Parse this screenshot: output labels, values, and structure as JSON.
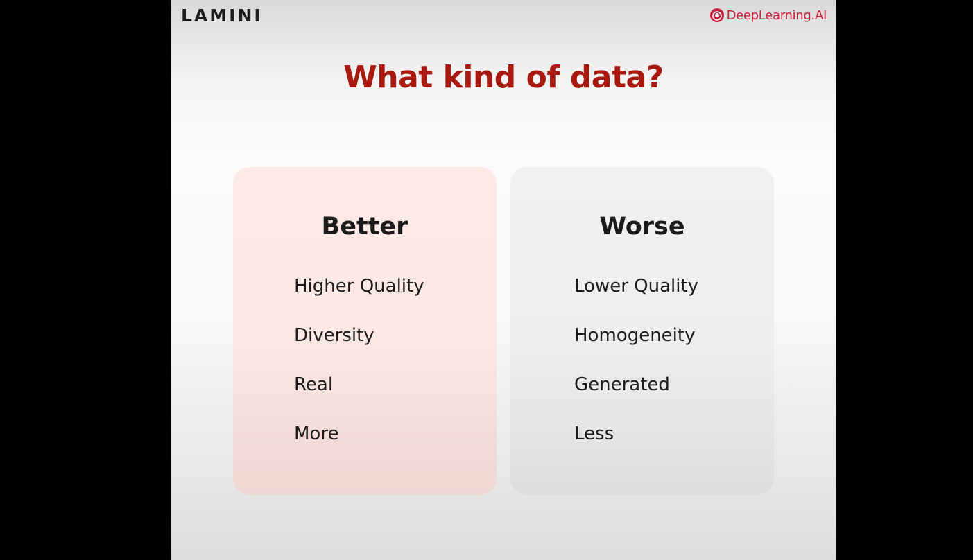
{
  "header": {
    "left_logo": "LAMINI",
    "right_logo": "DeepLearning.AI",
    "right_logo_icon": "deeplearning-ai-icon",
    "right_logo_color": "#c8203a"
  },
  "title": "What kind of data?",
  "title_color": "#a8190f",
  "cards": {
    "better": {
      "heading": "Better",
      "items": [
        "Higher Quality",
        "Diversity",
        "Real",
        "More"
      ]
    },
    "worse": {
      "heading": "Worse",
      "items": [
        "Lower Quality",
        "Homogeneity",
        "Generated",
        "Less"
      ]
    }
  }
}
